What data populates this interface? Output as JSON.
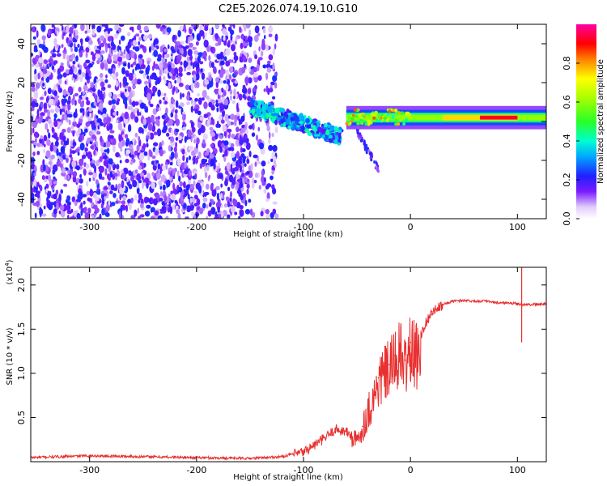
{
  "title": "C2E5.2026.074.19.10.G10",
  "chart_data": [
    {
      "type": "heatmap",
      "xlabel": "Height of straight line (km)",
      "ylabel": "Frequency (Hz)",
      "xlim": [
        -355,
        127
      ],
      "ylim": [
        -50,
        50
      ],
      "xticks": [
        -300,
        -200,
        -100,
        0,
        100
      ],
      "yticks": [
        -40,
        -20,
        0,
        20,
        40
      ],
      "colorbar": {
        "label": "Normalized spectral amplitude",
        "range": [
          0,
          1
        ],
        "ticks": [
          0.0,
          0.2,
          0.4,
          0.6,
          0.8
        ]
      },
      "features": [
        {
          "x_range": [
            -355,
            -130
          ],
          "pattern": "scattered low-amplitude noise across all frequencies"
        },
        {
          "x_range": [
            -150,
            -65
          ],
          "pattern": "descending band from about 8 Hz to -8 Hz"
        },
        {
          "x_range": [
            -60,
            127
          ],
          "pattern": "strong band near 2 Hz, peak amplitude ~1.0 near x=70-110"
        }
      ]
    },
    {
      "type": "line",
      "xlabel": "Height of straight line (km)",
      "ylabel": "SNR (10 * v/v)",
      "multiplier_label": "(x10",
      "multiplier_exp": "4",
      "multiplier_close": ")",
      "xlim": [
        -355,
        127
      ],
      "ylim": [
        0,
        2.2
      ],
      "xticks": [
        -300,
        -200,
        -100,
        0,
        100
      ],
      "yticks": [
        0.5,
        1.0,
        1.5,
        2.0
      ],
      "ytick_labels": [
        "0.5",
        "1.0",
        "1.5",
        "2.0"
      ],
      "series_color": "#e83030",
      "x": [
        -355,
        -300,
        -250,
        -200,
        -150,
        -120,
        -100,
        -90,
        -80,
        -70,
        -60,
        -50,
        -45,
        -40,
        -35,
        -30,
        -25,
        -20,
        -15,
        -10,
        -5,
        0,
        5,
        10,
        15,
        20,
        30,
        40,
        50,
        60,
        70,
        80,
        90,
        100,
        104,
        110,
        127
      ],
      "values": [
        0.05,
        0.07,
        0.06,
        0.05,
        0.04,
        0.06,
        0.12,
        0.2,
        0.28,
        0.38,
        0.35,
        0.25,
        0.4,
        0.6,
        0.75,
        0.95,
        1.05,
        1.1,
        1.2,
        1.3,
        1.15,
        1.35,
        1.25,
        1.45,
        1.6,
        1.7,
        1.78,
        1.82,
        1.83,
        1.82,
        1.82,
        1.8,
        1.8,
        1.79,
        1.78,
        1.78,
        1.79
      ]
    }
  ],
  "colors": {
    "line": "#e83030",
    "plot_border": "#000000"
  }
}
